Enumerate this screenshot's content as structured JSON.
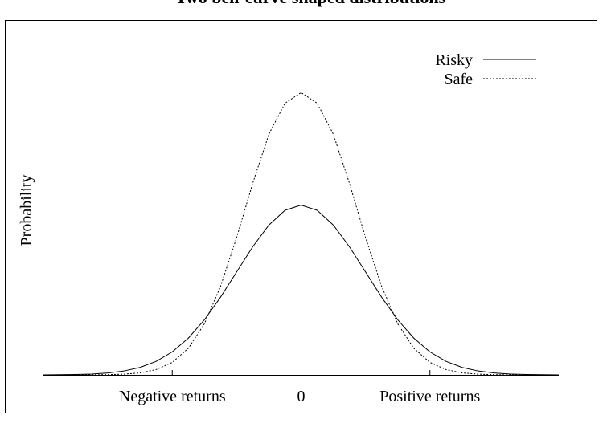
{
  "chart_data": {
    "type": "line",
    "title": "Two bell-curve shaped distributions",
    "xlabel": "",
    "ylabel": "Probability",
    "xlim": [
      -4,
      4
    ],
    "ylim": [
      0,
      0.83
    ],
    "grid": false,
    "legend_position": "top-right",
    "x_ticks": [
      {
        "value": -2,
        "label": "Negative returns"
      },
      {
        "value": 0,
        "label": "0"
      },
      {
        "value": 2,
        "label": "Positive returns"
      }
    ],
    "series": [
      {
        "name": "Risky",
        "style": "solid",
        "color": "#000000",
        "x": [
          -4,
          -3.75,
          -3.5,
          -3.25,
          -3,
          -2.75,
          -2.5,
          -2.25,
          -2,
          -1.75,
          -1.5,
          -1.25,
          -1,
          -0.75,
          -0.5,
          -0.25,
          0,
          0.25,
          0.5,
          0.75,
          1,
          1.25,
          1.5,
          1.75,
          2,
          2.25,
          2.5,
          2.75,
          3,
          3.25,
          3.5,
          3.75,
          4
        ],
        "values": [
          0.0001,
          0.0004,
          0.0009,
          0.002,
          0.0044,
          0.0091,
          0.0175,
          0.0317,
          0.054,
          0.0863,
          0.1295,
          0.1826,
          0.242,
          0.3011,
          0.3521,
          0.3867,
          0.3989,
          0.3867,
          0.3521,
          0.3011,
          0.242,
          0.1826,
          0.1295,
          0.0863,
          0.054,
          0.0317,
          0.0175,
          0.0091,
          0.0044,
          0.002,
          0.0009,
          0.0004,
          0.0001
        ]
      },
      {
        "name": "Safe",
        "style": "dotted",
        "color": "#000000",
        "x": [
          -4,
          -3.75,
          -3.5,
          -3.25,
          -3,
          -2.75,
          -2.5,
          -2.25,
          -2,
          -1.75,
          -1.5,
          -1.25,
          -1,
          -0.75,
          -0.5,
          -0.25,
          0,
          0.25,
          0.5,
          0.75,
          1,
          1.25,
          1.5,
          1.75,
          2,
          2.25,
          2.5,
          2.75,
          3,
          3.25,
          3.5,
          3.75,
          4
        ],
        "values": [
          0.0,
          0.0,
          0.0,
          0.0001,
          0.0005,
          0.0017,
          0.0047,
          0.0124,
          0.0293,
          0.0625,
          0.1202,
          0.208,
          0.3228,
          0.4506,
          0.5656,
          0.6383,
          0.6634,
          0.6383,
          0.5656,
          0.4506,
          0.3228,
          0.208,
          0.1202,
          0.0625,
          0.0293,
          0.0124,
          0.0047,
          0.0017,
          0.0005,
          0.0001,
          0.0,
          0.0,
          0.0
        ]
      }
    ]
  }
}
